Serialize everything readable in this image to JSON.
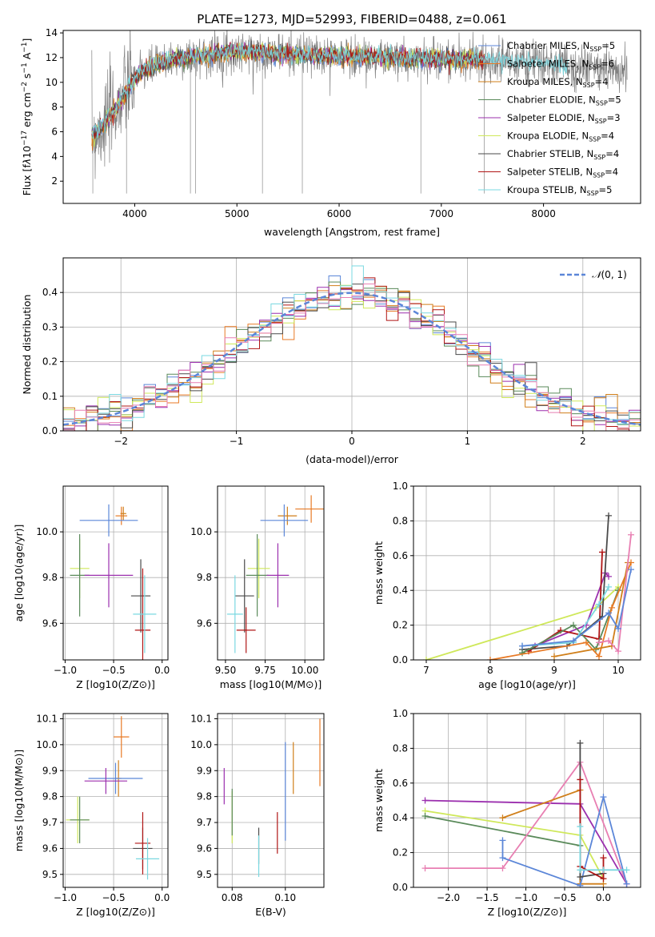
{
  "colors": {
    "Chabrier MILES": "#5b86d8",
    "Salpeter MILES": "#e87a25",
    "Kroupa MILES": "#d07f1a",
    "Chabrier ELODIE": "#5a8a5a",
    "Salpeter ELODIE": "#9b2fae",
    "Kroupa ELODIE": "#cfe85a",
    "Chabrier STELIB": "#4a4a4a",
    "Salpeter STELIB": "#b01515",
    "Kroupa STELIB": "#7ad8e0"
  },
  "chart_data": [
    {
      "id": "spectrum",
      "type": "line",
      "title": "PLATE=1273, MJD=52993, FIBERID=0488, z=0.061",
      "xlabel": "wavelength [Angstrom, rest frame]",
      "ylabel": "Flux [f_λ 10^-17 erg cm^-2 s^-1 A^-1]",
      "xlim": [
        3300,
        8950
      ],
      "ylim": [
        0.2,
        14.2
      ],
      "xticks": [
        "4000",
        "5000",
        "6000",
        "7000",
        "8000"
      ],
      "yticks": [
        "2",
        "4",
        "6",
        "8",
        "10",
        "12",
        "14"
      ],
      "grid": false,
      "legend": "right",
      "series": [
        {
          "name": "Chabrier MILES, N_SSP=5",
          "type": "model"
        },
        {
          "name": "Salpeter MILES, N_SSP=6",
          "type": "model"
        },
        {
          "name": "Kroupa MILES, N_SSP=4",
          "type": "model"
        },
        {
          "name": "Chabrier ELODIE, N_SSP=5",
          "type": "model"
        },
        {
          "name": "Salpeter ELODIE, N_SSP=3",
          "type": "model"
        },
        {
          "name": "Kroupa ELODIE, N_SSP=4",
          "type": "model"
        },
        {
          "name": "Chabrier STELIB, N_SSP=4",
          "type": "model"
        },
        {
          "name": "Salpeter STELIB, N_SSP=4",
          "type": "model"
        },
        {
          "name": "Kroupa STELIB, N_SSP=5",
          "type": "model"
        }
      ],
      "continuum": {
        "x": [
          3580,
          3700,
          3800,
          3900,
          3950,
          4000,
          4100,
          4300,
          4500,
          4800,
          5000,
          5500,
          6000,
          6500,
          7000,
          7400,
          7800,
          8300,
          8600,
          8800
        ],
        "y": [
          5.6,
          6.5,
          7.8,
          9.0,
          9.7,
          10.3,
          11.0,
          11.7,
          12.0,
          12.3,
          12.5,
          12.3,
          12.1,
          12.0,
          11.9,
          11.8,
          11.6,
          11.3,
          11.1,
          11.0
        ]
      },
      "observed_range": [
        3580,
        8820
      ],
      "model_range": [
        3580,
        7420
      ]
    },
    {
      "id": "residuals",
      "type": "histogram",
      "xlabel": "(data-model)/error",
      "ylabel": "Normed distribution",
      "xlim": [
        -2.5,
        2.5
      ],
      "ylim": [
        0,
        0.5
      ],
      "xticks": [
        "−2",
        "−1",
        "0",
        "1",
        "2"
      ],
      "yticks": [
        "0.0",
        "0.1",
        "0.2",
        "0.3",
        "0.4"
      ],
      "grid": true,
      "legend": "top-right",
      "reference": {
        "name": "N(0,1)",
        "mean": 0,
        "sigma": 1,
        "color": "#5b86d8"
      },
      "bins": 50
    },
    {
      "id": "z-age",
      "type": "scatter",
      "xlabel": "Z [log10(Z/Z⊙)]",
      "ylabel": "age  [log10(age/yr)]",
      "xlim": [
        -1.02,
        0.06
      ],
      "ylim": [
        9.44,
        10.2
      ],
      "xticks": [
        {
          "v": -1.0,
          "t": "−1.0"
        },
        {
          "v": -0.5,
          "t": "−0.5"
        },
        {
          "v": 0.0,
          "t": "0.0"
        }
      ],
      "yticks": [
        {
          "v": 9.6,
          "t": "9.6"
        },
        {
          "v": 9.8,
          "t": "9.8"
        },
        {
          "v": 10.0,
          "t": "10.0"
        }
      ],
      "grid": true,
      "points": [
        {
          "model": "Salpeter MILES",
          "x": -0.42,
          "y": 10.07,
          "xe": 0.06,
          "ye": 0.04
        },
        {
          "model": "Kroupa MILES",
          "x": -0.4,
          "y": 10.08,
          "xe": 0.03,
          "ye": 0.03
        },
        {
          "model": "Chabrier MILES",
          "x": -0.55,
          "y": 10.05,
          "xe": 0.3,
          "ye": 0.07
        },
        {
          "model": "Kroupa ELODIE",
          "x": -0.85,
          "y": 9.84,
          "xe": 0.1,
          "ye": 0.13
        },
        {
          "model": "Chabrier ELODIE",
          "x": -0.85,
          "y": 9.81,
          "xe": 0.1,
          "ye": 0.18
        },
        {
          "model": "Salpeter ELODIE",
          "x": -0.55,
          "y": 9.81,
          "xe": 0.25,
          "ye": 0.14
        },
        {
          "model": "Chabrier STELIB",
          "x": -0.22,
          "y": 9.72,
          "xe": 0.1,
          "ye": 0.16
        },
        {
          "model": "Salpeter STELIB",
          "x": -0.2,
          "y": 9.57,
          "xe": 0.08,
          "ye": 0.27
        },
        {
          "model": "Kroupa STELIB",
          "x": -0.18,
          "y": 9.64,
          "xe": 0.12,
          "ye": 0.17
        }
      ]
    },
    {
      "id": "mass-age",
      "type": "scatter",
      "xlabel": "mass [log10(M/M⊙)]",
      "ylabel": "",
      "xlim": [
        9.45,
        10.12
      ],
      "ylim": [
        9.44,
        10.2
      ],
      "xticks": [
        {
          "v": 9.5,
          "t": "9.50"
        },
        {
          "v": 9.75,
          "t": "9.75"
        },
        {
          "v": 10.0,
          "t": "10.00"
        }
      ],
      "yticks": [
        {
          "v": 9.6,
          "t": "9.6"
        },
        {
          "v": 9.8,
          "t": "9.8"
        },
        {
          "v": 10.0,
          "t": "10.0"
        }
      ],
      "grid": true,
      "points": [
        {
          "model": "Salpeter MILES",
          "x": 10.04,
          "y": 10.1,
          "xe": 0.1,
          "ye": 0.06
        },
        {
          "model": "Kroupa MILES",
          "x": 9.89,
          "y": 10.07,
          "xe": 0.06,
          "ye": 0.04
        },
        {
          "model": "Chabrier MILES",
          "x": 9.87,
          "y": 10.05,
          "xe": 0.15,
          "ye": 0.07
        },
        {
          "model": "Kroupa ELODIE",
          "x": 9.71,
          "y": 9.84,
          "xe": 0.07,
          "ye": 0.13
        },
        {
          "model": "Chabrier ELODIE",
          "x": 9.7,
          "y": 9.81,
          "xe": 0.07,
          "ye": 0.18
        },
        {
          "model": "Salpeter ELODIE",
          "x": 9.83,
          "y": 9.81,
          "xe": 0.07,
          "ye": 0.14
        },
        {
          "model": "Chabrier STELIB",
          "x": 9.62,
          "y": 9.72,
          "xe": 0.06,
          "ye": 0.16
        },
        {
          "model": "Salpeter STELIB",
          "x": 9.63,
          "y": 9.57,
          "xe": 0.06,
          "ye": 0.1
        },
        {
          "model": "Kroupa STELIB",
          "x": 9.56,
          "y": 9.64,
          "xe": 0.05,
          "ye": 0.17
        }
      ]
    },
    {
      "id": "age-weight",
      "type": "line",
      "xlabel": "age  [log10(age/yr)]",
      "ylabel": "mass weight",
      "xlim": [
        6.8,
        10.35
      ],
      "ylim": [
        0,
        1.0
      ],
      "xticks": [
        {
          "v": 7,
          "t": "7"
        },
        {
          "v": 8,
          "t": "8"
        },
        {
          "v": 9,
          "t": "9"
        },
        {
          "v": 10,
          "t": "10"
        }
      ],
      "yticks": [
        {
          "v": 0.0,
          "t": "0.0"
        },
        {
          "v": 0.2,
          "t": "0.2"
        },
        {
          "v": 0.4,
          "t": "0.4"
        },
        {
          "v": 0.6,
          "t": "0.6"
        },
        {
          "v": 0.8,
          "t": "0.8"
        },
        {
          "v": 1.0,
          "t": "1.0"
        }
      ],
      "grid": true,
      "series": [
        {
          "model": "Kroupa ELODIE",
          "x": [
            7.0,
            9.65,
            10.0
          ],
          "y": [
            0.0,
            0.3,
            0.42
          ]
        },
        {
          "model": "Salpeter ELODIE",
          "x": [
            8.7,
            9.5,
            9.8,
            9.85
          ],
          "y": [
            0.08,
            0.2,
            0.5,
            0.48
          ]
        },
        {
          "model": "Salpeter STELIB",
          "x": [
            8.6,
            9.1,
            9.7,
            9.75
          ],
          "y": [
            0.05,
            0.17,
            0.12,
            0.62
          ]
        },
        {
          "model": "Chabrier STELIB",
          "x": [
            8.5,
            9.2,
            9.75,
            9.85
          ],
          "y": [
            0.06,
            0.08,
            0.25,
            0.83
          ]
        },
        {
          "model": "Chabrier ELODIE",
          "x": [
            8.5,
            9.3,
            9.65,
            10.0
          ],
          "y": [
            0.04,
            0.2,
            0.06,
            0.4
          ]
        },
        {
          "model": "Kroupa STELIB",
          "x": [
            8.5,
            9.3,
            9.7,
            9.85
          ],
          "y": [
            0.08,
            0.1,
            0.32,
            0.42
          ]
        },
        {
          "model": "Salpeter MILES",
          "x": [
            8.0,
            9.5,
            9.7,
            9.9,
            10.2
          ],
          "y": [
            0.0,
            0.1,
            0.02,
            0.3,
            0.56
          ]
        },
        {
          "model": "Kroupa MILES",
          "x": [
            9.0,
            9.9,
            10.15
          ],
          "y": [
            0.02,
            0.08,
            0.56
          ]
        },
        {
          "model": "Salpeter MILES",
          "x": [
            9.7,
            9.85,
            10.0,
            10.2
          ],
          "y": [
            0.1,
            0.11,
            0.05,
            0.72
          ],
          "color": "#e87fb2"
        },
        {
          "model": "Chabrier MILES",
          "x": [
            8.5,
            9.3,
            9.85,
            10.0,
            10.2
          ],
          "y": [
            0.08,
            0.11,
            0.27,
            0.18,
            0.52
          ]
        }
      ]
    },
    {
      "id": "z-mass",
      "type": "scatter",
      "xlabel": "Z [log10(Z/Z⊙)]",
      "ylabel": "mass [log10(M/M⊙)]",
      "xlim": [
        -1.02,
        0.06
      ],
      "ylim": [
        9.45,
        10.12
      ],
      "xticks": [
        {
          "v": -1.0,
          "t": "−1.0"
        },
        {
          "v": -0.5,
          "t": "−0.5"
        },
        {
          "v": 0.0,
          "t": "0.0"
        }
      ],
      "yticks": [
        {
          "v": 9.5,
          "t": "9.5"
        },
        {
          "v": 9.6,
          "t": "9.6"
        },
        {
          "v": 9.7,
          "t": "9.7"
        },
        {
          "v": 9.8,
          "t": "9.8"
        },
        {
          "v": 9.9,
          "t": "9.9"
        },
        {
          "v": 10.0,
          "t": "10.0"
        },
        {
          "v": 10.1,
          "t": "10.1"
        }
      ],
      "grid": true,
      "points": [
        {
          "model": "Salpeter MILES",
          "x": -0.42,
          "y": 10.03,
          "xe": 0.08,
          "ye": 0.08
        },
        {
          "model": "Kroupa MILES",
          "x": -0.45,
          "y": 9.87,
          "xe": 0.03,
          "ye": 0.07
        },
        {
          "model": "Chabrier MILES",
          "x": -0.48,
          "y": 9.87,
          "xe": 0.28,
          "ye": 0.06
        },
        {
          "model": "Kroupa ELODIE",
          "x": -0.87,
          "y": 9.71,
          "xe": 0.12,
          "ye": 0.09
        },
        {
          "model": "Chabrier ELODIE",
          "x": -0.85,
          "y": 9.71,
          "xe": 0.1,
          "ye": 0.09
        },
        {
          "model": "Salpeter ELODIE",
          "x": -0.58,
          "y": 9.86,
          "xe": 0.22,
          "ye": 0.05
        },
        {
          "model": "Chabrier STELIB",
          "x": -0.2,
          "y": 9.6,
          "xe": 0.1,
          "ye": 0.08
        },
        {
          "model": "Salpeter STELIB",
          "x": -0.2,
          "y": 9.62,
          "xe": 0.08,
          "ye": 0.12
        },
        {
          "model": "Kroupa STELIB",
          "x": -0.15,
          "y": 9.56,
          "xe": 0.12,
          "ye": 0.08
        }
      ]
    },
    {
      "id": "ebv-mass",
      "type": "scatter",
      "xlabel": "E(B-V)",
      "ylabel": "",
      "xlim": [
        0.0745,
        0.1145
      ],
      "ylim": [
        9.45,
        10.12
      ],
      "xticks": [
        {
          "v": 0.08,
          "t": "0.08"
        },
        {
          "v": 0.1,
          "t": "0.10"
        }
      ],
      "yticks": [
        {
          "v": 9.5,
          "t": "9.5"
        },
        {
          "v": 9.6,
          "t": "9.6"
        },
        {
          "v": 9.7,
          "t": "9.7"
        },
        {
          "v": 9.8,
          "t": "9.8"
        },
        {
          "v": 9.9,
          "t": "9.9"
        },
        {
          "v": 10.0,
          "t": "10.0"
        },
        {
          "v": 10.1,
          "t": "10.1"
        }
      ],
      "grid": true,
      "points": [
        {
          "model": "Salpeter ELODIE",
          "x": 0.077,
          "y": 9.84,
          "xe": 0.0,
          "ye": 0.07
        },
        {
          "model": "Kroupa ELODIE",
          "x": 0.08,
          "y": 9.72,
          "xe": 0.0,
          "ye": 0.1
        },
        {
          "model": "Chabrier ELODIE",
          "x": 0.08,
          "y": 9.74,
          "xe": 0.0,
          "ye": 0.09
        },
        {
          "model": "Chabrier STELIB",
          "x": 0.09,
          "y": 9.61,
          "xe": 0.0,
          "ye": 0.07
        },
        {
          "model": "Kroupa STELIB",
          "x": 0.09,
          "y": 9.57,
          "xe": 0.0,
          "ye": 0.08
        },
        {
          "model": "Salpeter STELIB",
          "x": 0.097,
          "y": 9.66,
          "xe": 0.0,
          "ye": 0.08
        },
        {
          "model": "Chabrier MILES",
          "x": 0.1,
          "y": 9.82,
          "xe": 0.0,
          "ye": 0.19
        },
        {
          "model": "Kroupa MILES",
          "x": 0.103,
          "y": 9.91,
          "xe": 0.0,
          "ye": 0.1
        },
        {
          "model": "Salpeter MILES",
          "x": 0.113,
          "y": 9.97,
          "xe": 0.0,
          "ye": 0.13
        }
      ]
    },
    {
      "id": "z-weight",
      "type": "line",
      "xlabel": "Z [log10(Z/Z⊙)]",
      "ylabel": "mass weight",
      "xlim": [
        -2.45,
        0.48
      ],
      "ylim": [
        0,
        1.0
      ],
      "xticks": [
        {
          "v": -2.0,
          "t": "−2.0"
        },
        {
          "v": -1.5,
          "t": "−1.5"
        },
        {
          "v": -1.0,
          "t": "−1.0"
        },
        {
          "v": -0.5,
          "t": "−0.5"
        },
        {
          "v": 0.0,
          "t": "0.0"
        }
      ],
      "yticks": [
        {
          "v": 0.0,
          "t": "0.0"
        },
        {
          "v": 0.2,
          "t": "0.2"
        },
        {
          "v": 0.4,
          "t": "0.4"
        },
        {
          "v": 0.6,
          "t": "0.6"
        },
        {
          "v": 0.8,
          "t": "0.8"
        },
        {
          "v": 1.0,
          "t": "1.0"
        }
      ],
      "grid": true,
      "series": [
        {
          "model": "Salpeter ELODIE",
          "x": [
            -2.3,
            -0.3,
            0.3
          ],
          "y": [
            0.5,
            0.48,
            0.02
          ]
        },
        {
          "model": "Kroupa ELODIE",
          "x": [
            -2.3,
            -0.3,
            0.0
          ],
          "y": [
            0.44,
            0.3,
            0.05
          ]
        },
        {
          "model": "Chabrier ELODIE",
          "x": [
            -2.3,
            -0.3
          ],
          "y": [
            0.41,
            0.24
          ]
        },
        {
          "model": "Salpeter MILES",
          "x": [
            -2.3,
            -1.3,
            -0.3,
            0.3
          ],
          "y": [
            0.11,
            0.11,
            0.72,
            0.02
          ],
          "color": "#e87fb2"
        },
        {
          "model": "Kroupa MILES",
          "x": [
            -1.3,
            -0.3,
            -0.3,
            0.0
          ],
          "y": [
            0.4,
            0.56,
            0.02,
            0.02
          ]
        },
        {
          "model": "Chabrier MILES",
          "x": [
            -1.3,
            -1.3,
            -0.3,
            0.0,
            0.3
          ],
          "y": [
            0.27,
            0.17,
            0.01,
            0.52,
            0.02
          ]
        },
        {
          "model": "Chabrier STELIB",
          "x": [
            -0.3,
            -0.3,
            0.0
          ],
          "y": [
            0.83,
            0.06,
            0.08
          ]
        },
        {
          "model": "Salpeter STELIB",
          "x": [
            -0.3,
            -0.3,
            0.0,
            0.0
          ],
          "y": [
            0.62,
            0.12,
            0.05,
            0.17
          ]
        },
        {
          "model": "Kroupa STELIB",
          "x": [
            -0.3,
            -0.3,
            0.0,
            0.3
          ],
          "y": [
            0.35,
            0.1,
            0.1,
            0.1
          ]
        }
      ]
    }
  ]
}
